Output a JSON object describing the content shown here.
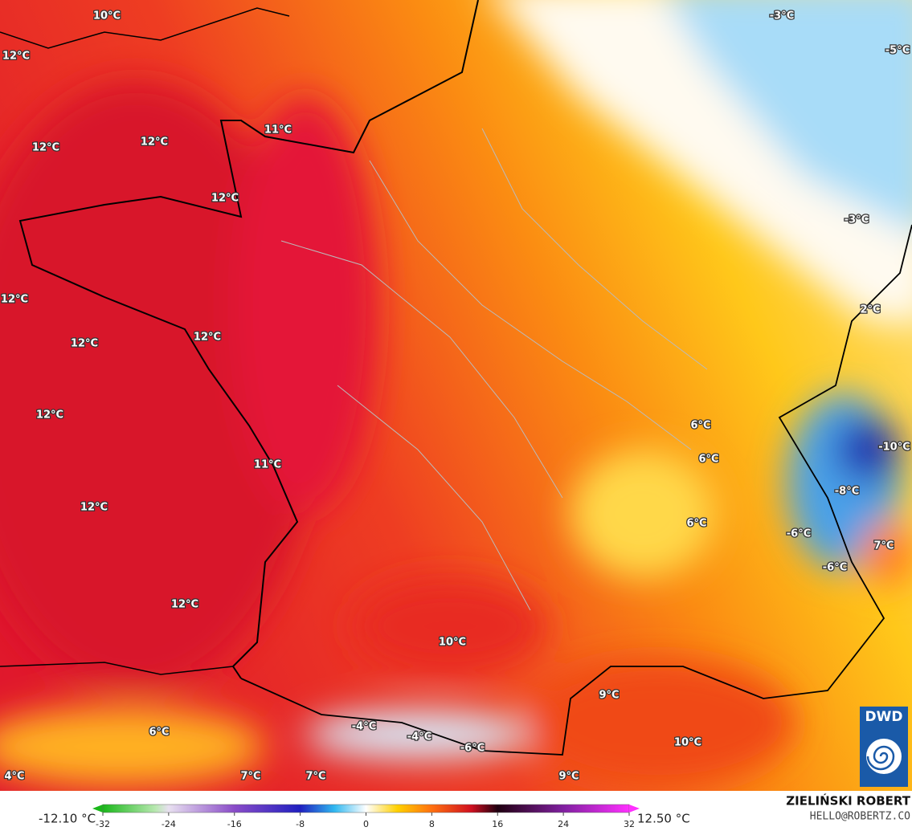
{
  "labels": [
    "10°C",
    "12°C",
    "12°C",
    "12°C",
    "11°C",
    "12°C",
    "12°C",
    "12°C",
    "12°C",
    "12°C",
    "11°C",
    "12°C",
    "12°C",
    "10°C",
    "9°C",
    "10°C",
    "9°C",
    "6°C",
    "6°C",
    "6°C",
    "6°C",
    "4°C",
    "7°C",
    "7°C",
    "-4°C",
    "-4°C",
    "-6°C",
    "2°C",
    "-3°C",
    "-3°C",
    "-5°C",
    "-10°C",
    "-8°C",
    "-6°C",
    "-6°C",
    "7°C"
  ],
  "colorbar": {
    "min_label": "-12.10 °C",
    "max_label": "12.50 °C",
    "lim": [
      -32,
      32
    ],
    "ticks": [
      -32,
      -24,
      -16,
      -8,
      0,
      8,
      16,
      24,
      32
    ]
  },
  "author": "ZIELIŃSKI ROBERT",
  "email": "HELLO@ROBERTZ.CO",
  "logo": "DWD"
}
